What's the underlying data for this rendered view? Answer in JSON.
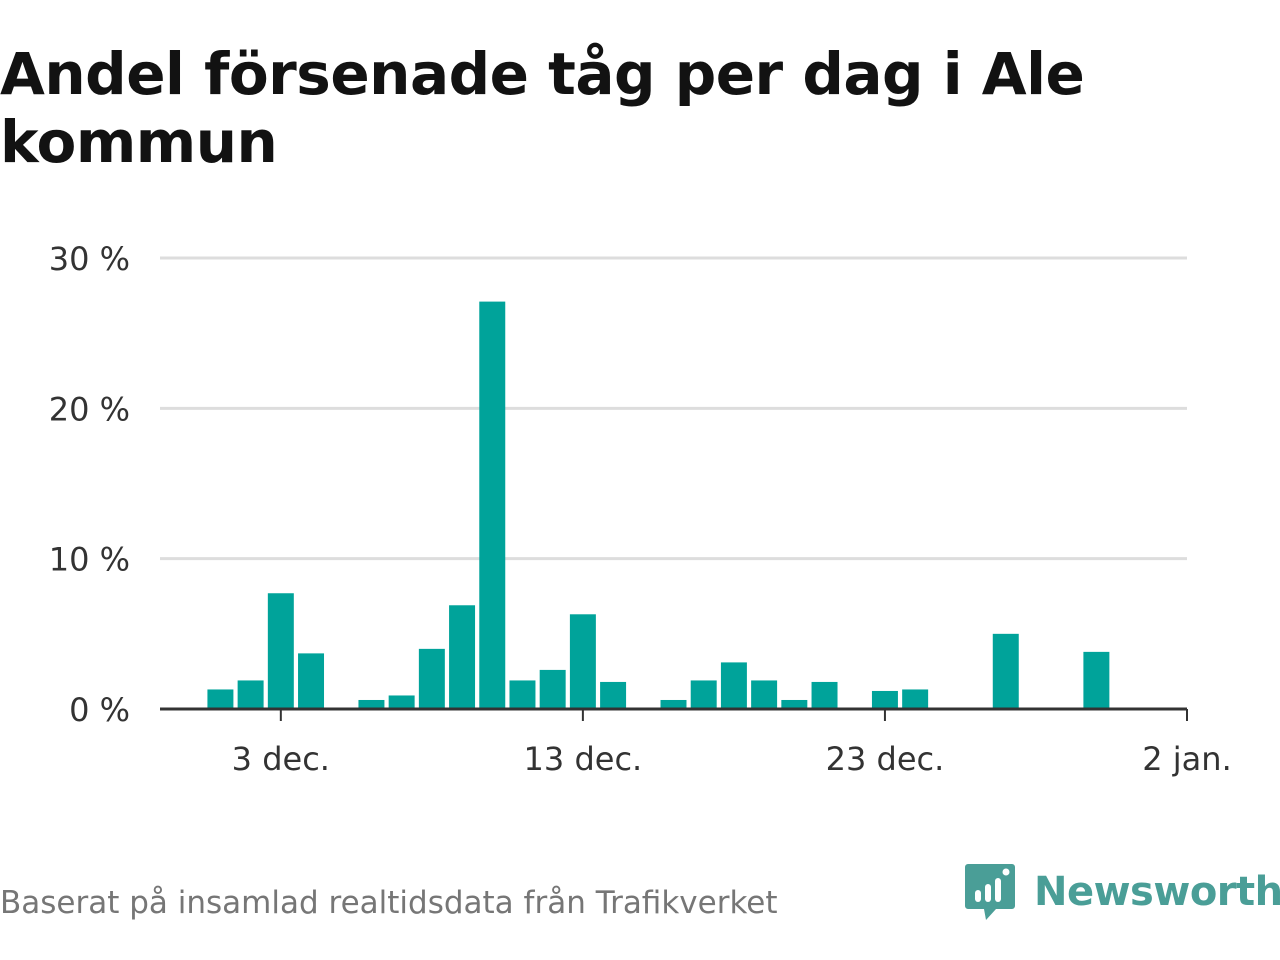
{
  "title": "Andel försenade tåg per dag i Ale kommun",
  "footer": "Baserat på insamlad realtidsdata från Trafikverket",
  "brand": {
    "name": "Newsworthy",
    "icon": "newsworthy-logo-icon",
    "color": "#4a9e97"
  },
  "colors": {
    "bar": "#00a39a",
    "grid": "#dddddd",
    "axis": "#333333",
    "text": "#333333"
  },
  "chart_data": {
    "type": "bar",
    "title": "Andel försenade tåg per dag i Ale kommun",
    "xlabel": "",
    "ylabel": "",
    "ylim": [
      0,
      30
    ],
    "y_ticks": [
      {
        "value": 0,
        "label": "0 %"
      },
      {
        "value": 10,
        "label": "10 %"
      },
      {
        "value": 20,
        "label": "20 %"
      },
      {
        "value": 30,
        "label": "30 %"
      }
    ],
    "x_ticks": [
      {
        "date": "2019-12-03",
        "label": "3 dec."
      },
      {
        "date": "2019-12-13",
        "label": "13 dec."
      },
      {
        "date": "2019-12-23",
        "label": "23 dec."
      },
      {
        "date": "2020-01-02",
        "label": "2 jan."
      }
    ],
    "x_range": [
      "2019-11-29",
      "2020-01-02"
    ],
    "grid": true,
    "legend": "none",
    "bars": [
      {
        "date": "2019-12-01",
        "value": 1.3
      },
      {
        "date": "2019-12-02",
        "value": 1.9
      },
      {
        "date": "2019-12-03",
        "value": 7.7
      },
      {
        "date": "2019-12-04",
        "value": 3.7
      },
      {
        "date": "2019-12-06",
        "value": 0.6
      },
      {
        "date": "2019-12-07",
        "value": 0.9
      },
      {
        "date": "2019-12-08",
        "value": 4.0
      },
      {
        "date": "2019-12-09",
        "value": 6.9
      },
      {
        "date": "2019-12-10",
        "value": 27.1
      },
      {
        "date": "2019-12-11",
        "value": 1.9
      },
      {
        "date": "2019-12-12",
        "value": 2.6
      },
      {
        "date": "2019-12-13",
        "value": 6.3
      },
      {
        "date": "2019-12-14",
        "value": 1.8
      },
      {
        "date": "2019-12-16",
        "value": 0.6
      },
      {
        "date": "2019-12-17",
        "value": 1.9
      },
      {
        "date": "2019-12-18",
        "value": 3.1
      },
      {
        "date": "2019-12-19",
        "value": 1.9
      },
      {
        "date": "2019-12-20",
        "value": 0.6
      },
      {
        "date": "2019-12-21",
        "value": 1.8
      },
      {
        "date": "2019-12-23",
        "value": 1.2
      },
      {
        "date": "2019-12-24",
        "value": 1.3
      },
      {
        "date": "2019-12-27",
        "value": 5.0
      },
      {
        "date": "2019-12-30",
        "value": 3.8
      }
    ]
  }
}
